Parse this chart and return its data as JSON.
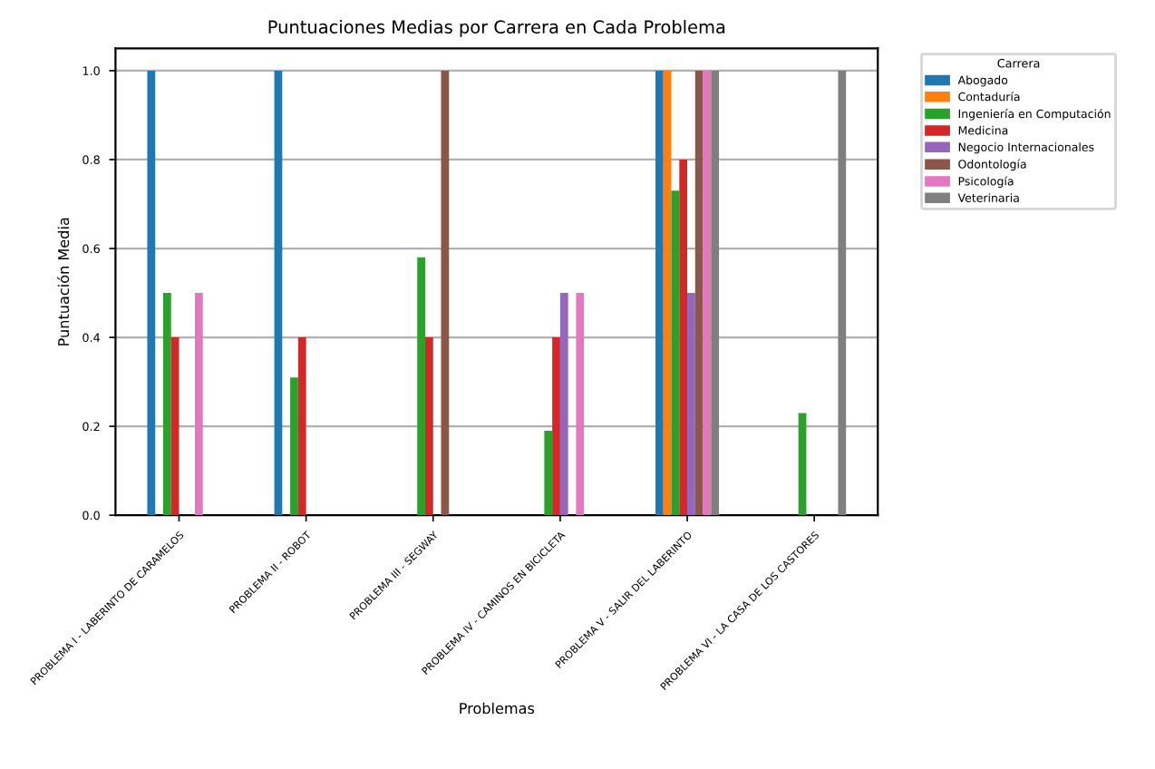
{
  "chart_data": {
    "type": "bar",
    "title": "Puntuaciones Medias por Carrera en Cada Problema",
    "xlabel": "Problemas",
    "ylabel": "Puntuación Media",
    "legend_title": "Carrera",
    "categories": [
      "PROBLEMA I - LABERINTO DE CARAMELOS",
      "PROBLEMA II - ROBOT",
      "PROBLEMA III - SEGWAY",
      "PROBLEMA IV - CAMINOS EN BICICLETA",
      "PROBLEMA V - SALIR DEL LABERINTO",
      "PROBLEMA VI - LA CASA DE LOS CASTORES"
    ],
    "series": [
      {
        "name": "Abogado",
        "color": "#1f77b4",
        "values": [
          1.0,
          1.0,
          null,
          null,
          1.0,
          null
        ]
      },
      {
        "name": "Contaduría",
        "color": "#ff7f0e",
        "values": [
          null,
          null,
          null,
          null,
          1.0,
          null
        ]
      },
      {
        "name": "Ingeniería en Computación",
        "color": "#2ca02c",
        "values": [
          0.5,
          0.31,
          0.58,
          0.19,
          0.73,
          0.23
        ]
      },
      {
        "name": "Medicina",
        "color": "#d62728",
        "values": [
          0.4,
          0.4,
          0.4,
          0.4,
          0.8,
          null
        ]
      },
      {
        "name": "Negocio Internacionales",
        "color": "#9467bd",
        "values": [
          null,
          null,
          null,
          0.5,
          0.5,
          null
        ]
      },
      {
        "name": "Odontología",
        "color": "#8c564b",
        "values": [
          null,
          null,
          1.0,
          null,
          1.0,
          null
        ]
      },
      {
        "name": "Psicología",
        "color": "#e377c2",
        "values": [
          0.5,
          null,
          null,
          0.5,
          1.0,
          null
        ]
      },
      {
        "name": "Veterinaria",
        "color": "#7f7f7f",
        "values": [
          null,
          null,
          null,
          null,
          1.0,
          1.0
        ]
      }
    ],
    "ylim": [
      0,
      1.05
    ],
    "yticks": [
      {
        "value": 0,
        "label": "0.0"
      },
      {
        "value": 0.2,
        "label": "0.2"
      },
      {
        "value": 0.4,
        "label": "0.4"
      },
      {
        "value": 0.6,
        "label": "0.6"
      },
      {
        "value": 0.8,
        "label": "0.8"
      },
      {
        "value": 1.0,
        "label": "1.0"
      }
    ],
    "grid": "y",
    "legend": "top right"
  }
}
